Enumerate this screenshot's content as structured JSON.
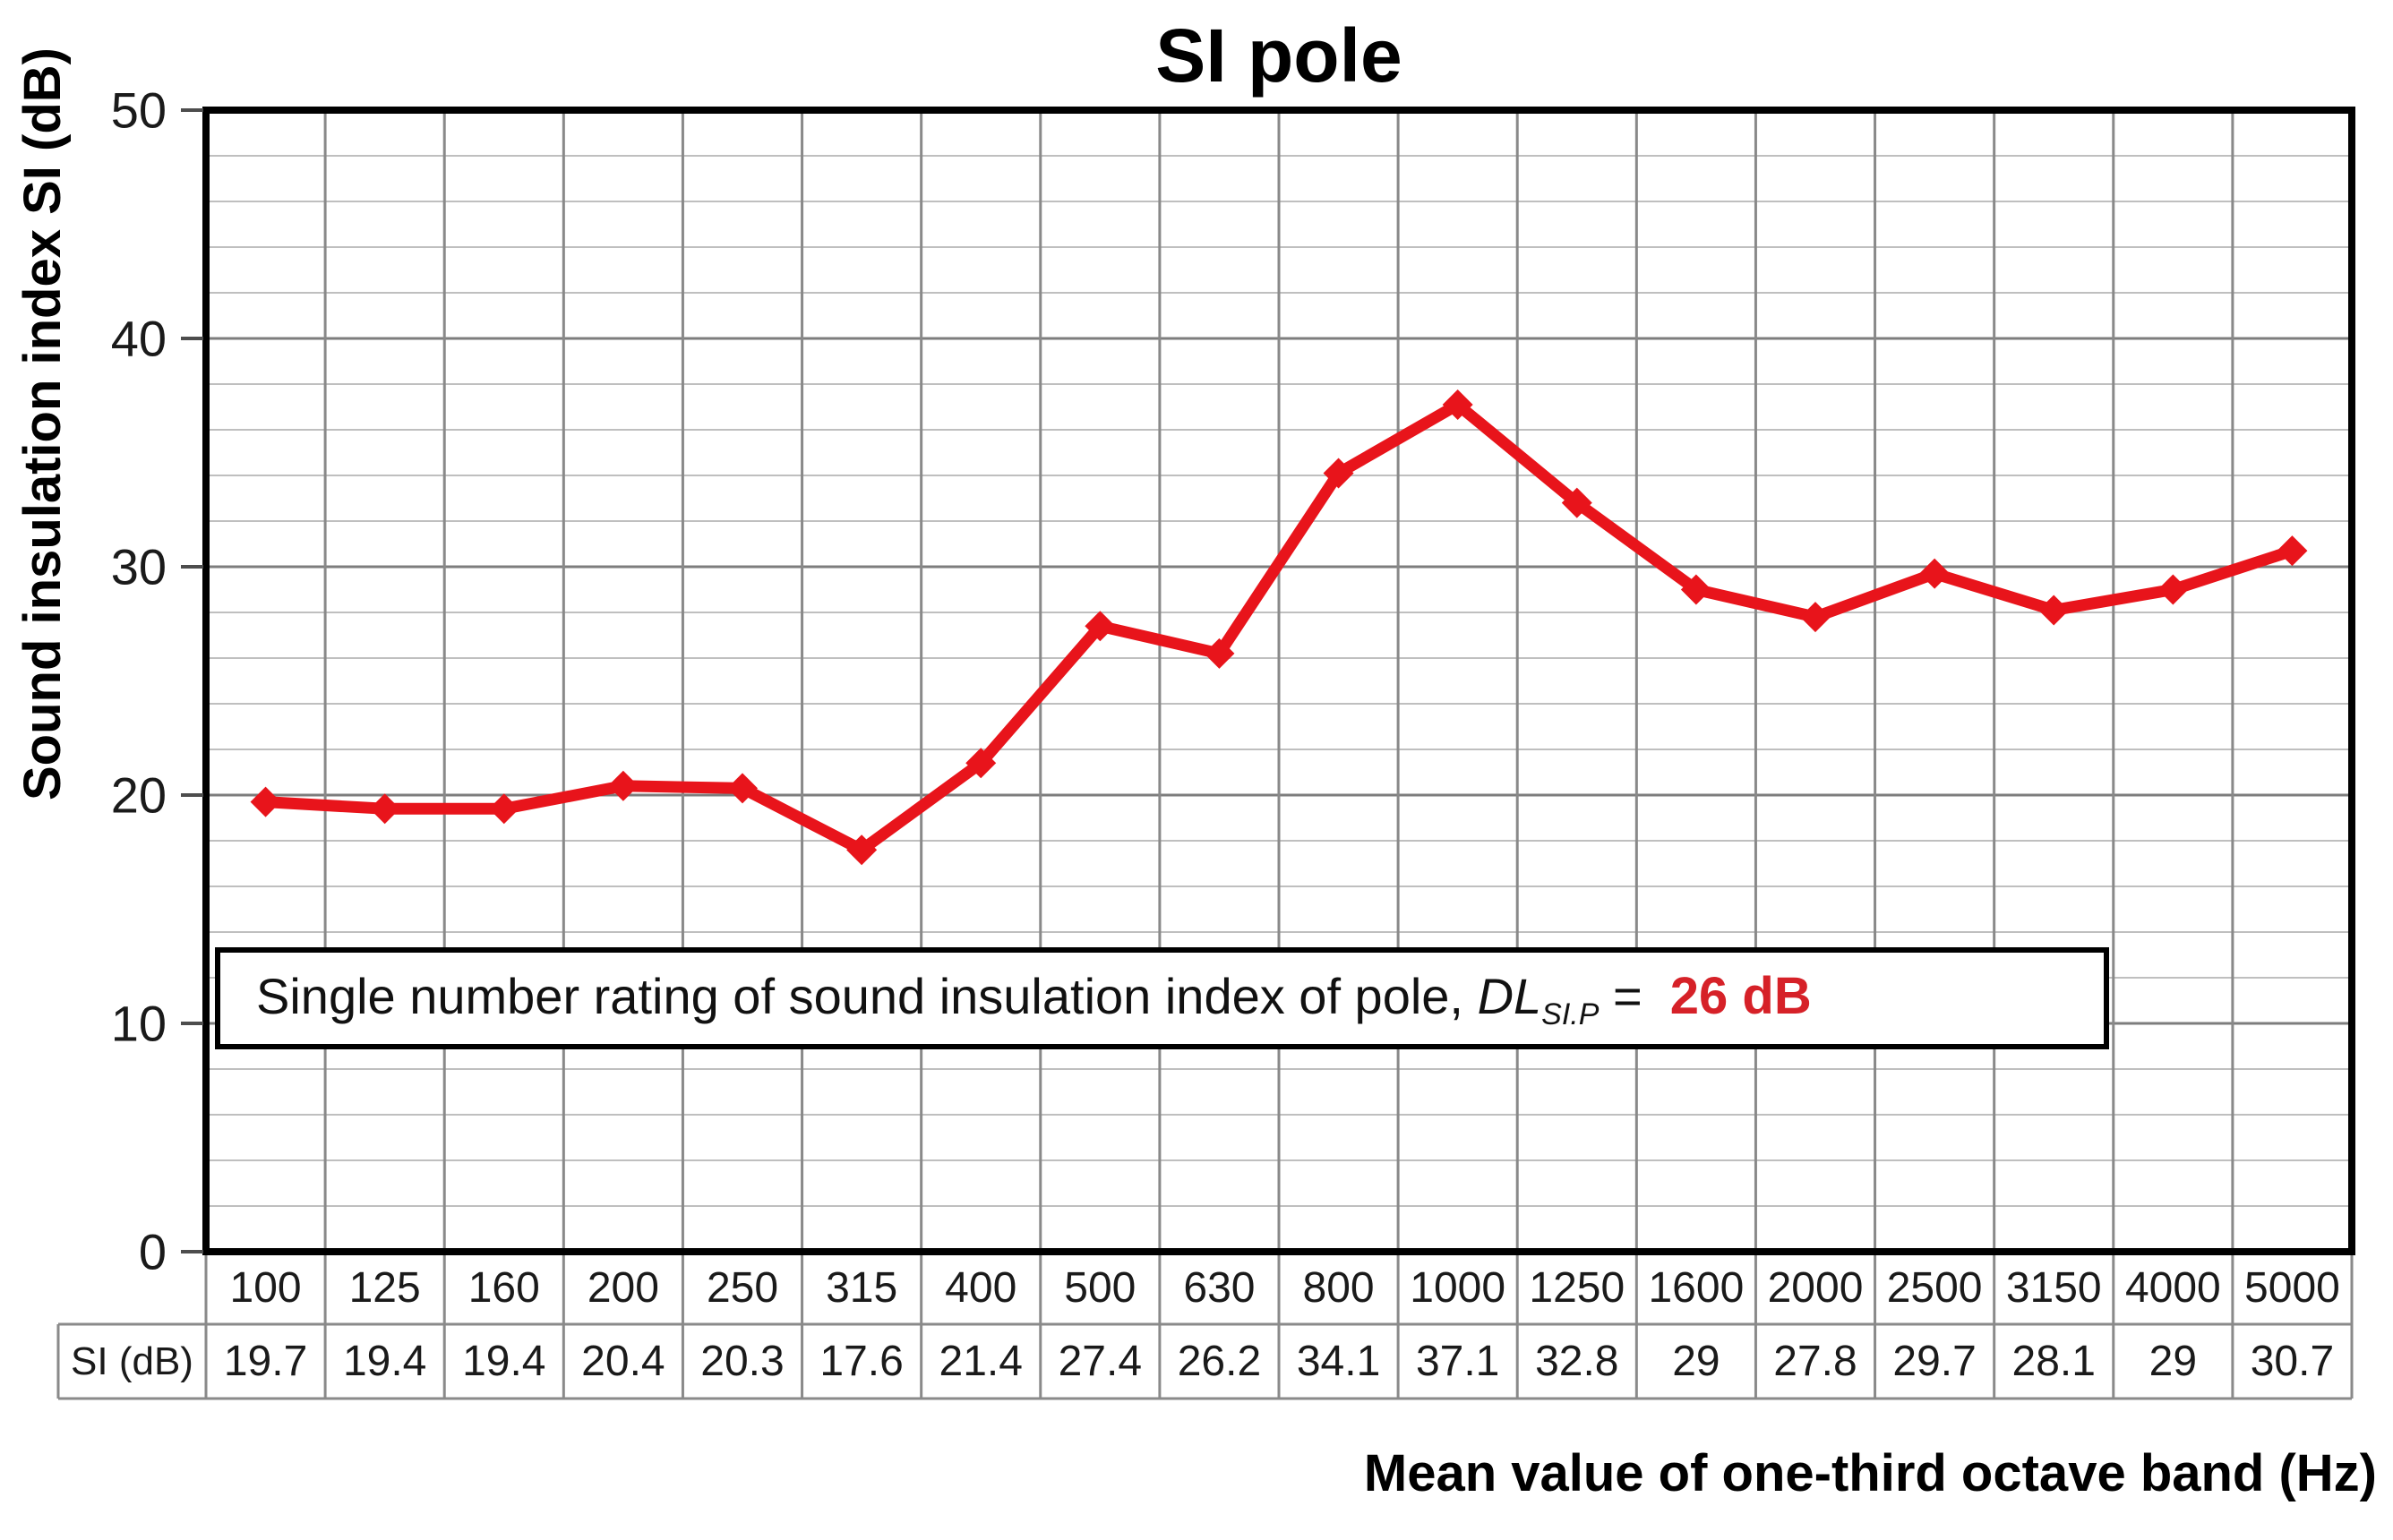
{
  "chart_data": {
    "type": "line",
    "title": "SI pole",
    "xlabel": "Mean value of one-third octave band (Hz)",
    "ylabel": "Sound insulation index SI (dB)",
    "categories": [
      "100",
      "125",
      "160",
      "200",
      "250",
      "315",
      "400",
      "500",
      "630",
      "800",
      "1000",
      "1250",
      "1600",
      "2000",
      "2500",
      "3150",
      "4000",
      "5000"
    ],
    "series": [
      {
        "name": "SI (dB)",
        "color": "#e8141b",
        "marker": "diamond",
        "values": [
          19.7,
          19.4,
          19.4,
          20.4,
          20.3,
          17.6,
          21.4,
          27.4,
          26.2,
          34.1,
          37.1,
          32.8,
          29,
          27.8,
          29.7,
          28.1,
          29,
          30.7
        ]
      }
    ],
    "ylim": [
      0,
      50
    ],
    "y_major_step": 10,
    "y_minor_step": 2,
    "y_tick_labels": [
      "0",
      "10",
      "20",
      "30",
      "40",
      "50"
    ],
    "grid": true,
    "legend_position": "none",
    "annotation": {
      "text": "Single number rating of sound insulation index of pole, ",
      "symbol": "DL",
      "subscript": "SI.P",
      "equals": " =  ",
      "value": "26 dB",
      "value_color": "#d62128"
    }
  },
  "colors": {
    "series_red": "#e8141b",
    "annotation_value_red": "#d62128",
    "gridline_minor": "#bfbfbf",
    "gridline_major": "#7d7d7d",
    "gridline_vertical": "#898989",
    "table_border": "#8a8a8a",
    "axis_border": "#000000",
    "text_dark": "#1a1a1a"
  }
}
